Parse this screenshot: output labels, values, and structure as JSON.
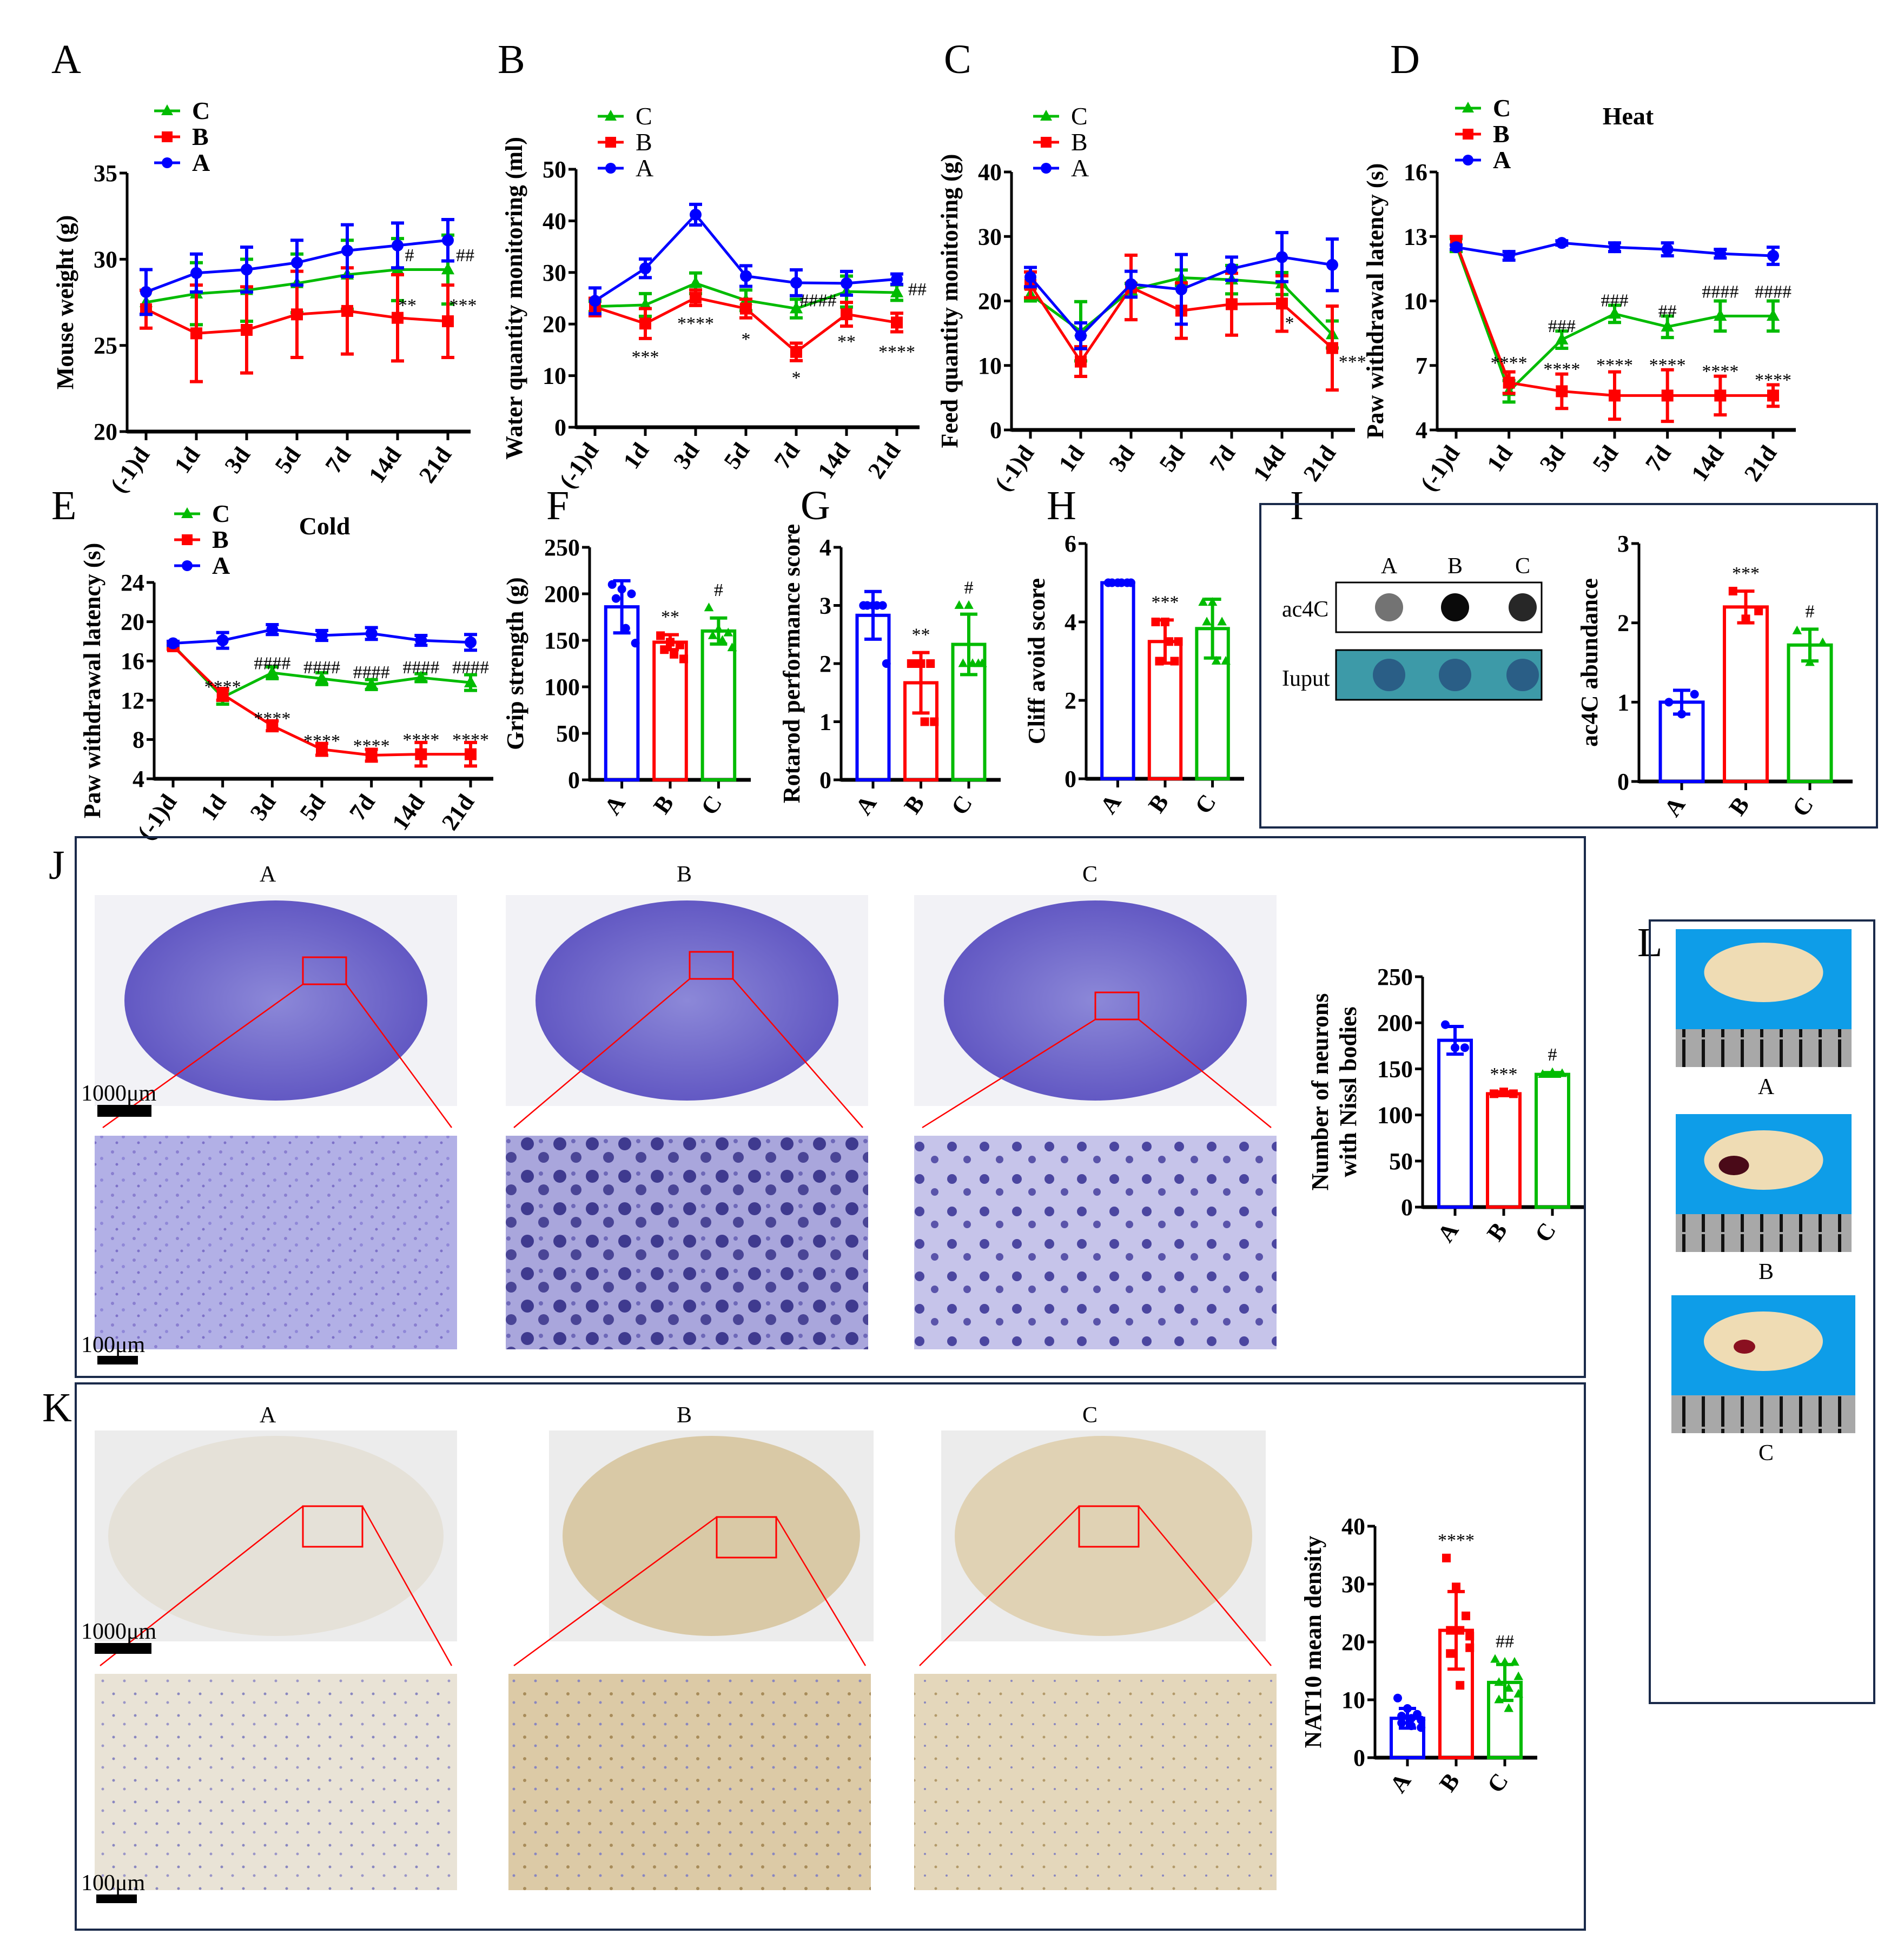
{
  "figure": {
    "panel_letters": [
      "A",
      "B",
      "C",
      "D",
      "E",
      "F",
      "G",
      "H",
      "I",
      "J",
      "K",
      "L"
    ],
    "colors": {
      "A": "#0000ff",
      "B": "#ff0000",
      "C": "#00bb00",
      "frame": "#1a2a4a"
    }
  },
  "chart_data": [
    {
      "id": "A",
      "type": "line",
      "title": "",
      "ylabel": "Mouse weight (g)",
      "ylim": [
        20,
        35
      ],
      "yticks": [
        20,
        25,
        30,
        35
      ],
      "categories": [
        "(-1)d",
        "1d",
        "3d",
        "5d",
        "7d",
        "14d",
        "21d"
      ],
      "legend": [
        "C",
        "B",
        "A"
      ],
      "legend_bold": true,
      "series": [
        {
          "name": "A",
          "values": [
            28.1,
            29.2,
            29.4,
            29.8,
            30.5,
            30.8,
            31.1
          ],
          "err": [
            1.3,
            1.1,
            1.3,
            1.3,
            1.5,
            1.3,
            1.2
          ]
        },
        {
          "name": "B",
          "values": [
            27.1,
            25.7,
            25.9,
            26.8,
            27.0,
            26.6,
            26.4
          ],
          "err": [
            1.1,
            2.8,
            2.5,
            2.5,
            2.5,
            2.5,
            2.1
          ]
        },
        {
          "name": "C",
          "values": [
            27.5,
            28.0,
            28.2,
            28.6,
            29.1,
            29.4,
            29.4
          ],
          "err": [
            0.7,
            1.8,
            1.8,
            1.7,
            2.0,
            1.8,
            2.0
          ]
        }
      ],
      "annotations": [
        {
          "x": "14d",
          "text": "#",
          "y": 30.2
        },
        {
          "x": "21d",
          "text": "##",
          "y": 30.2
        },
        {
          "x": "14d",
          "text": "**",
          "y": 27.3
        },
        {
          "x": "21d",
          "text": "***",
          "y": 27.3
        }
      ]
    },
    {
      "id": "B",
      "type": "line",
      "title": "",
      "ylabel": "Water quantity monitoring (ml)",
      "ylim": [
        0,
        50
      ],
      "yticks": [
        0,
        10,
        20,
        30,
        40,
        50
      ],
      "categories": [
        "(-1)d",
        "1d",
        "3d",
        "5d",
        "7d",
        "14d",
        "21d"
      ],
      "legend": [
        "C",
        "B",
        "A"
      ],
      "legend_bold": false,
      "series": [
        {
          "name": "A",
          "values": [
            24.5,
            30.8,
            41.2,
            29.3,
            28.0,
            27.9,
            28.7
          ],
          "err": [
            2.5,
            1.8,
            2.0,
            2.0,
            2.5,
            2.3,
            1.0
          ]
        },
        {
          "name": "B",
          "values": [
            23.3,
            20.1,
            25.1,
            23.0,
            14.6,
            21.9,
            20.3
          ],
          "err": [
            1.7,
            2.9,
            1.5,
            1.8,
            1.7,
            2.3,
            1.8
          ]
        },
        {
          "name": "C",
          "values": [
            23.4,
            23.7,
            27.9,
            24.6,
            23.0,
            26.3,
            26.1
          ],
          "err": [
            1.0,
            2.2,
            2.0,
            2.0,
            1.8,
            3.0,
            1.5
          ]
        }
      ],
      "annotations": [
        {
          "x": "1d",
          "text": "***",
          "y": 13.5
        },
        {
          "x": "3d",
          "text": "****",
          "y": 20
        },
        {
          "x": "5d",
          "text": "*",
          "y": 17
        },
        {
          "x": "7d",
          "text": "*",
          "y": 9.5
        },
        {
          "x": "7d",
          "text": "####",
          "y": 24.5,
          "dx": 0.5
        },
        {
          "x": "14d",
          "text": "**",
          "y": 16.5
        },
        {
          "x": "21d",
          "text": "****",
          "y": 14.5
        },
        {
          "x": "21d",
          "text": "##",
          "y": 25.8,
          "dx": 0.3
        }
      ]
    },
    {
      "id": "C",
      "type": "line",
      "title": "",
      "ylabel": "Feed quantity monitoring (g)",
      "ylim": [
        0,
        40
      ],
      "yticks": [
        0,
        10,
        20,
        30,
        40
      ],
      "categories": [
        "(-1)d",
        "1d",
        "3d",
        "5d",
        "7d",
        "14d",
        "21d"
      ],
      "legend": [
        "C",
        "B",
        "A"
      ],
      "legend_bold": false,
      "series": [
        {
          "name": "A",
          "values": [
            23.7,
            14.6,
            22.6,
            21.8,
            25.0,
            26.8,
            25.6
          ],
          "err": [
            1.5,
            2.0,
            2.0,
            5.4,
            1.8,
            3.8,
            4.0
          ]
        },
        {
          "name": "B",
          "values": [
            22.5,
            10.6,
            22.1,
            18.5,
            19.5,
            19.6,
            12.7
          ],
          "err": [
            2.0,
            2.3,
            5.0,
            4.3,
            4.8,
            4.3,
            6.5
          ]
        },
        {
          "name": "C",
          "values": [
            21.0,
            15.3,
            21.7,
            23.6,
            23.3,
            22.7,
            14.8
          ],
          "err": [
            1.0,
            4.6,
            1.0,
            1.2,
            2.2,
            1.7,
            2.1
          ]
        }
      ],
      "annotations": [
        {
          "x": "14d",
          "text": "*",
          "y": 16.5,
          "dx": 0.15
        },
        {
          "x": "21d",
          "text": "***",
          "y": 10.5,
          "dx": 0.4
        }
      ]
    },
    {
      "id": "D",
      "type": "line",
      "title": "Heat",
      "ylabel": "Paw withdrawal latency (s)",
      "ylim": [
        4,
        16
      ],
      "yticks": [
        4,
        7,
        10,
        13,
        16
      ],
      "categories": [
        "(-1)d",
        "1d",
        "3d",
        "5d",
        "7d",
        "14d",
        "21d"
      ],
      "legend": [
        "C",
        "B",
        "A"
      ],
      "legend_bold": true,
      "series": [
        {
          "name": "A",
          "values": [
            12.5,
            12.1,
            12.7,
            12.5,
            12.4,
            12.2,
            12.1
          ],
          "err": [
            0.1,
            0.2,
            0.1,
            0.2,
            0.3,
            0.2,
            0.4
          ]
        },
        {
          "name": "B",
          "values": [
            12.7,
            6.2,
            5.8,
            5.6,
            5.6,
            5.6,
            5.6
          ],
          "err": [
            0.3,
            0.5,
            0.8,
            1.1,
            1.2,
            0.9,
            0.5
          ]
        },
        {
          "name": "C",
          "values": [
            12.6,
            5.8,
            8.2,
            9.4,
            8.8,
            9.3,
            9.3
          ],
          "err": [
            0.3,
            0.5,
            0.4,
            0.4,
            0.5,
            0.7,
            0.7
          ]
        }
      ],
      "annotations": [
        {
          "x": "1d",
          "text": "****",
          "y": 7.1
        },
        {
          "x": "3d",
          "text": "****",
          "y": 6.8
        },
        {
          "x": "5d",
          "text": "****",
          "y": 7.0
        },
        {
          "x": "7d",
          "text": "****",
          "y": 7.0
        },
        {
          "x": "14d",
          "text": "****",
          "y": 6.7
        },
        {
          "x": "21d",
          "text": "****",
          "y": 6.3
        },
        {
          "x": "3d",
          "text": "###",
          "y": 8.8
        },
        {
          "x": "5d",
          "text": "###",
          "y": 10.0
        },
        {
          "x": "7d",
          "text": "##",
          "y": 9.5
        },
        {
          "x": "14d",
          "text": "####",
          "y": 10.4
        },
        {
          "x": "21d",
          "text": "####",
          "y": 10.4
        }
      ]
    },
    {
      "id": "E",
      "type": "line",
      "title": "Cold",
      "ylabel": "Paw withdrawal latency (s)",
      "ylim": [
        4,
        24
      ],
      "yticks": [
        4,
        8,
        12,
        16,
        20,
        24
      ],
      "categories": [
        "(-1)d",
        "1d",
        "3d",
        "5d",
        "7d",
        "14d",
        "21d"
      ],
      "legend": [
        "C",
        "B",
        "A"
      ],
      "legend_bold": true,
      "series": [
        {
          "name": "A",
          "values": [
            17.8,
            18.1,
            19.2,
            18.6,
            18.8,
            18.1,
            17.9
          ],
          "err": [
            0.2,
            0.8,
            0.5,
            0.5,
            0.6,
            0.5,
            0.8
          ]
        },
        {
          "name": "B",
          "values": [
            17.5,
            12.6,
            9.4,
            7.0,
            6.4,
            6.5,
            6.5
          ],
          "err": [
            0.3,
            0.6,
            0.5,
            0.6,
            0.6,
            1.2,
            1.2
          ]
        },
        {
          "name": "C",
          "values": [
            17.6,
            12.3,
            14.8,
            14.2,
            13.6,
            14.3,
            13.8
          ],
          "err": [
            0.2,
            0.7,
            0.6,
            0.6,
            0.5,
            0.4,
            0.8
          ]
        }
      ],
      "annotations": [
        {
          "x": "1d",
          "text": "****",
          "y": 13.3
        },
        {
          "x": "3d",
          "text": "****",
          "y": 10.1
        },
        {
          "x": "5d",
          "text": "****",
          "y": 7.8
        },
        {
          "x": "7d",
          "text": "****",
          "y": 7.3
        },
        {
          "x": "14d",
          "text": "****",
          "y": 7.9
        },
        {
          "x": "21d",
          "text": "****",
          "y": 7.9
        },
        {
          "x": "3d",
          "text": "####",
          "y": 15.7
        },
        {
          "x": "5d",
          "text": "####",
          "y": 15.3
        },
        {
          "x": "7d",
          "text": "####",
          "y": 14.8
        },
        {
          "x": "14d",
          "text": "####",
          "y": 15.3
        },
        {
          "x": "21d",
          "text": "####",
          "y": 15.3
        }
      ]
    },
    {
      "id": "F",
      "type": "bar",
      "ylabel": "Grip strength (g)",
      "ylim": [
        0,
        250
      ],
      "yticks": [
        0,
        50,
        100,
        150,
        200,
        250
      ],
      "categories": [
        "A",
        "B",
        "C"
      ],
      "values": [
        186,
        148,
        160
      ],
      "err": [
        28,
        8,
        14
      ],
      "points": [
        [
          210,
          205,
          200,
          195,
          163,
          147
        ],
        [
          155,
          148,
          145,
          140,
          135,
          130
        ],
        [
          185,
          162,
          158,
          155,
          150,
          142
        ]
      ],
      "annotations": [
        {
          "x": "B",
          "text": "**"
        },
        {
          "x": "C",
          "text": "#"
        }
      ]
    },
    {
      "id": "G",
      "type": "bar",
      "ylabel": "Rotarod performance score",
      "ylim": [
        0,
        4
      ],
      "yticks": [
        0,
        1,
        2,
        3,
        4
      ],
      "categories": [
        "A",
        "B",
        "C"
      ],
      "values": [
        2.83,
        1.67,
        2.33
      ],
      "err": [
        0.41,
        0.52,
        0.52
      ],
      "points": [
        [
          3,
          3,
          3,
          3,
          3,
          2
        ],
        [
          2,
          2,
          2,
          2,
          1,
          1
        ],
        [
          3,
          3,
          2,
          2,
          2,
          2
        ]
      ],
      "annotations": [
        {
          "x": "B",
          "text": "**"
        },
        {
          "x": "C",
          "text": "#"
        }
      ]
    },
    {
      "id": "H",
      "type": "bar",
      "ylabel": "Cliff avoid score",
      "ylim": [
        0,
        6
      ],
      "yticks": [
        0,
        2,
        4,
        6
      ],
      "categories": [
        "A",
        "B",
        "C"
      ],
      "values": [
        5,
        3.5,
        3.83
      ],
      "err": [
        0,
        0.55,
        0.75
      ],
      "points": [
        [
          5,
          5,
          5,
          5,
          5,
          5
        ],
        [
          4,
          4,
          3,
          3,
          3.5,
          3.5
        ],
        [
          4.5,
          4.5,
          4,
          4,
          3,
          3
        ]
      ],
      "annotations": [
        {
          "x": "B",
          "text": "***"
        }
      ]
    },
    {
      "id": "I",
      "type": "bar",
      "ylabel": "ac4C abundance",
      "ylim": [
        0,
        3
      ],
      "yticks": [
        0,
        1,
        2,
        3
      ],
      "categories": [
        "A",
        "B",
        "C"
      ],
      "values": [
        1.0,
        2.2,
        1.72
      ],
      "err": [
        0.15,
        0.2,
        0.2
      ],
      "points": [
        [
          1.0,
          0.85,
          1.1
        ],
        [
          2.4,
          2.05,
          2.15
        ],
        [
          1.9,
          1.5,
          1.75
        ]
      ],
      "annotations": [
        {
          "x": "B",
          "text": "***"
        },
        {
          "x": "C",
          "text": "#"
        }
      ]
    },
    {
      "id": "J",
      "type": "bar",
      "ylabel": "Number of  neurons with Nissl bodies",
      "ylim": [
        0,
        250
      ],
      "yticks": [
        0,
        50,
        100,
        150,
        200,
        250
      ],
      "categories": [
        "A",
        "B",
        "C"
      ],
      "values": [
        181,
        123,
        144
      ],
      "err": [
        15,
        2,
        2
      ],
      "points": [
        [
          198,
          173,
          173
        ],
        [
          123,
          125,
          123
        ],
        [
          144,
          146,
          145
        ]
      ],
      "annotations": [
        {
          "x": "B",
          "text": "***"
        },
        {
          "x": "C",
          "text": "#"
        }
      ]
    },
    {
      "id": "K",
      "type": "bar",
      "ylabel": "NAT10 mean density",
      "ylim": [
        0,
        40
      ],
      "yticks": [
        0,
        10,
        20,
        30,
        40
      ],
      "categories": [
        "A",
        "B",
        "C"
      ],
      "values": [
        6.8,
        22.0,
        13.0
      ],
      "err": [
        1.7,
        6.7,
        3.1
      ],
      "points": [
        [
          10.3,
          8.5,
          7.5,
          7.2,
          6.8,
          6.5,
          6.0,
          5.5,
          5.2
        ],
        [
          34.5,
          29.5,
          24.5,
          22,
          22,
          19,
          18,
          12.5,
          21
        ],
        [
          17,
          16.5,
          16.5,
          13,
          12,
          11,
          10,
          8.5,
          14
        ]
      ],
      "annotations": [
        {
          "x": "B",
          "text": "****"
        },
        {
          "x": "C",
          "text": "##"
        }
      ]
    }
  ],
  "panel_I_blot": {
    "lane_labels": [
      "A",
      "B",
      "C"
    ],
    "row_labels": [
      "ac4C",
      "Iuput"
    ],
    "ac4C_intensity": [
      0.45,
      1.0,
      0.85
    ]
  },
  "panel_J_images": {
    "group_labels": [
      "A",
      "B",
      "C"
    ],
    "scale_top": "1000μm",
    "scale_bottom": "100μm"
  },
  "panel_K_images": {
    "group_labels": [
      "A",
      "B",
      "C"
    ],
    "scale_top": "1000μm",
    "scale_bottom": "100μm"
  },
  "panel_L_images": {
    "group_labels": [
      "A",
      "B",
      "C"
    ]
  }
}
